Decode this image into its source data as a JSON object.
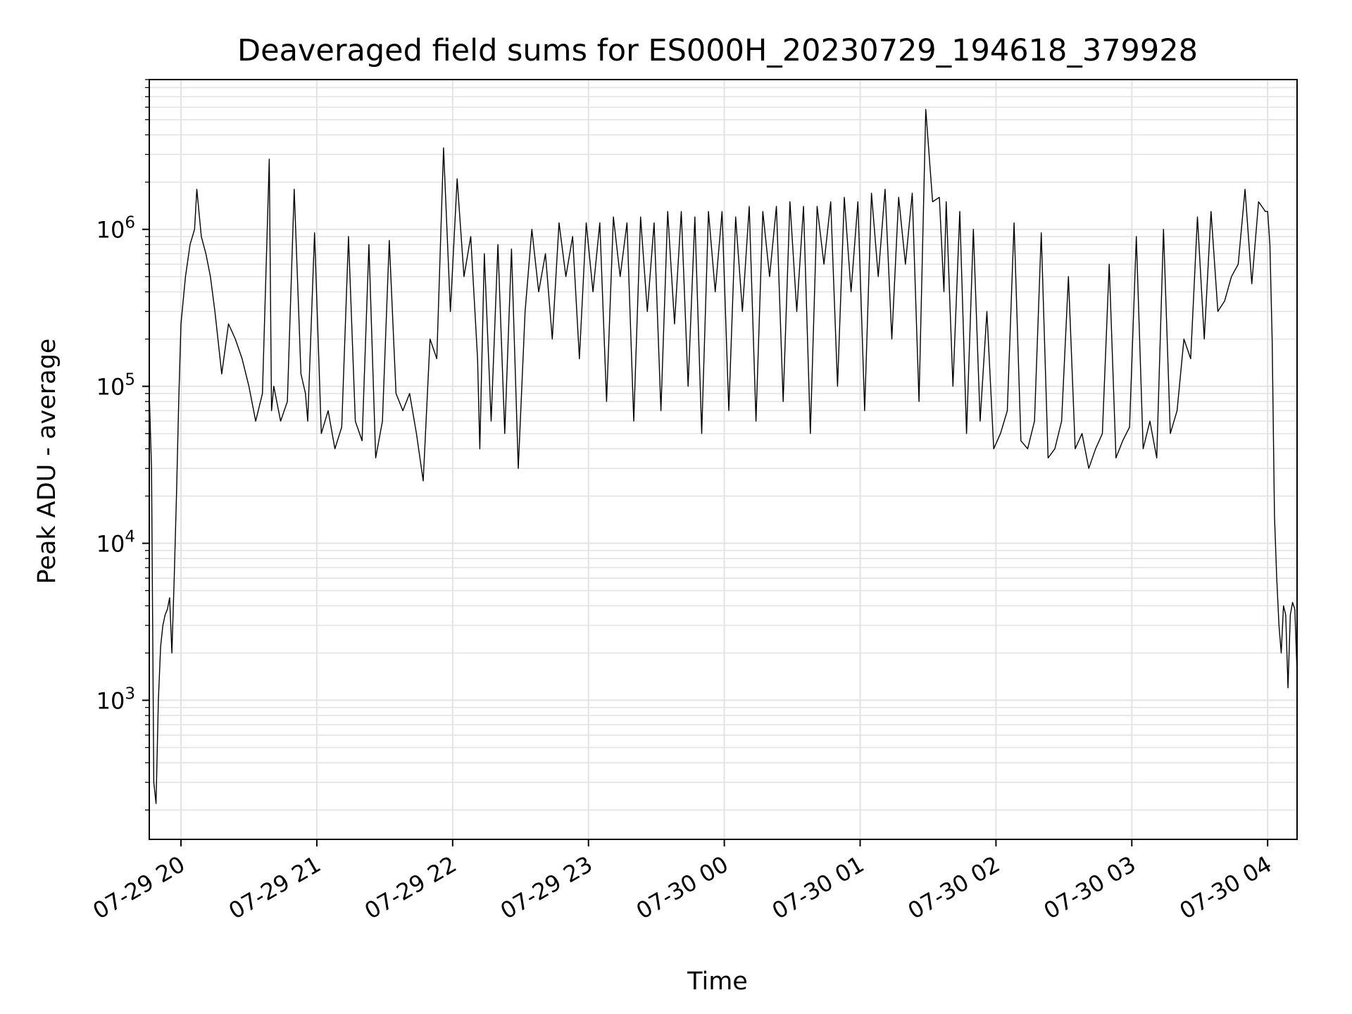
{
  "chart_data": {
    "type": "line",
    "title": "Deaveraged field sums for ES000H_20230729_194618_379928",
    "xlabel": "Time",
    "ylabel": "Peak ADU - average",
    "yscale": "log",
    "grid": true,
    "xlim": [
      "2023-07-29 19:46",
      "2023-07-30 04:13"
    ],
    "ylim": [
      130,
      9000000
    ],
    "line_color": "#000000",
    "x_ticks": [
      {
        "value": "2023-07-29 20:00",
        "label": "07-29 20"
      },
      {
        "value": "2023-07-29 21:00",
        "label": "07-29 21"
      },
      {
        "value": "2023-07-29 22:00",
        "label": "07-29 22"
      },
      {
        "value": "2023-07-29 23:00",
        "label": "07-29 23"
      },
      {
        "value": "2023-07-30 00:00",
        "label": "07-30 00"
      },
      {
        "value": "2023-07-30 01:00",
        "label": "07-30 01"
      },
      {
        "value": "2023-07-30 02:00",
        "label": "07-30 02"
      },
      {
        "value": "2023-07-30 03:00",
        "label": "07-30 03"
      },
      {
        "value": "2023-07-30 04:00",
        "label": "07-30 04"
      }
    ],
    "y_ticks": [
      {
        "value": 1000,
        "base": "10",
        "exp": "3"
      },
      {
        "value": 10000,
        "base": "10",
        "exp": "4"
      },
      {
        "value": 100000,
        "base": "10",
        "exp": "5"
      },
      {
        "value": 1000000,
        "base": "10",
        "exp": "6"
      }
    ],
    "series": [
      {
        "x": [
          "2023-07-29 19:46",
          "2023-07-29 19:47",
          "2023-07-29 19:48",
          "2023-07-29 19:49",
          "2023-07-29 19:50",
          "2023-07-29 19:51",
          "2023-07-29 19:52",
          "2023-07-29 19:53",
          "2023-07-29 19:54",
          "2023-07-29 19:55",
          "2023-07-29 19:56",
          "2023-07-29 19:57",
          "2023-07-29 19:58",
          "2023-07-29 19:59",
          "2023-07-29 20:00",
          "2023-07-29 20:02",
          "2023-07-29 20:04",
          "2023-07-29 20:06",
          "2023-07-29 20:07",
          "2023-07-29 20:09",
          "2023-07-29 20:11",
          "2023-07-29 20:13",
          "2023-07-29 20:15",
          "2023-07-29 20:18",
          "2023-07-29 20:21",
          "2023-07-29 20:24",
          "2023-07-29 20:27",
          "2023-07-29 20:30",
          "2023-07-29 20:33",
          "2023-07-29 20:36",
          "2023-07-29 20:39",
          "2023-07-29 20:40",
          "2023-07-29 20:41",
          "2023-07-29 20:44",
          "2023-07-29 20:47",
          "2023-07-29 20:50",
          "2023-07-29 20:53",
          "2023-07-29 20:55",
          "2023-07-29 20:56",
          "2023-07-29 20:59",
          "2023-07-29 21:02",
          "2023-07-29 21:05",
          "2023-07-29 21:08",
          "2023-07-29 21:11",
          "2023-07-29 21:14",
          "2023-07-29 21:17",
          "2023-07-29 21:20",
          "2023-07-29 21:23",
          "2023-07-29 21:26",
          "2023-07-29 21:29",
          "2023-07-29 21:32",
          "2023-07-29 21:35",
          "2023-07-29 21:38",
          "2023-07-29 21:41",
          "2023-07-29 21:44",
          "2023-07-29 21:47",
          "2023-07-29 21:50",
          "2023-07-29 21:53",
          "2023-07-29 21:56",
          "2023-07-29 21:59",
          "2023-07-29 22:02",
          "2023-07-29 22:05",
          "2023-07-29 22:08",
          "2023-07-29 22:11",
          "2023-07-29 22:12",
          "2023-07-29 22:14",
          "2023-07-29 22:17",
          "2023-07-29 22:20",
          "2023-07-29 22:23",
          "2023-07-29 22:26",
          "2023-07-29 22:29",
          "2023-07-29 22:32",
          "2023-07-29 22:35",
          "2023-07-29 22:38",
          "2023-07-29 22:41",
          "2023-07-29 22:44",
          "2023-07-29 22:47",
          "2023-07-29 22:50",
          "2023-07-29 22:53",
          "2023-07-29 22:56",
          "2023-07-29 22:59",
          "2023-07-29 23:02",
          "2023-07-29 23:05",
          "2023-07-29 23:08",
          "2023-07-29 23:11",
          "2023-07-29 23:14",
          "2023-07-29 23:17",
          "2023-07-29 23:20",
          "2023-07-29 23:23",
          "2023-07-29 23:26",
          "2023-07-29 23:29",
          "2023-07-29 23:32",
          "2023-07-29 23:35",
          "2023-07-29 23:38",
          "2023-07-29 23:41",
          "2023-07-29 23:44",
          "2023-07-29 23:47",
          "2023-07-29 23:50",
          "2023-07-29 23:53",
          "2023-07-29 23:56",
          "2023-07-29 23:59",
          "2023-07-30 00:02",
          "2023-07-30 00:05",
          "2023-07-30 00:08",
          "2023-07-30 00:11",
          "2023-07-30 00:14",
          "2023-07-30 00:17",
          "2023-07-30 00:20",
          "2023-07-30 00:23",
          "2023-07-30 00:26",
          "2023-07-30 00:29",
          "2023-07-30 00:32",
          "2023-07-30 00:35",
          "2023-07-30 00:38",
          "2023-07-30 00:41",
          "2023-07-30 00:44",
          "2023-07-30 00:47",
          "2023-07-30 00:50",
          "2023-07-30 00:53",
          "2023-07-30 00:56",
          "2023-07-30 00:59",
          "2023-07-30 01:02",
          "2023-07-30 01:05",
          "2023-07-30 01:08",
          "2023-07-30 01:11",
          "2023-07-30 01:14",
          "2023-07-30 01:17",
          "2023-07-30 01:20",
          "2023-07-30 01:23",
          "2023-07-30 01:26",
          "2023-07-30 01:29",
          "2023-07-30 01:32",
          "2023-07-30 01:35",
          "2023-07-30 01:37",
          "2023-07-30 01:38",
          "2023-07-30 01:41",
          "2023-07-30 01:44",
          "2023-07-30 01:47",
          "2023-07-30 01:50",
          "2023-07-30 01:53",
          "2023-07-30 01:56",
          "2023-07-30 01:59",
          "2023-07-30 02:02",
          "2023-07-30 02:05",
          "2023-07-30 02:08",
          "2023-07-30 02:11",
          "2023-07-30 02:14",
          "2023-07-30 02:17",
          "2023-07-30 02:20",
          "2023-07-30 02:23",
          "2023-07-30 02:26",
          "2023-07-30 02:29",
          "2023-07-30 02:32",
          "2023-07-30 02:35",
          "2023-07-30 02:38",
          "2023-07-30 02:41",
          "2023-07-30 02:44",
          "2023-07-30 02:47",
          "2023-07-30 02:50",
          "2023-07-30 02:53",
          "2023-07-30 02:56",
          "2023-07-30 02:59",
          "2023-07-30 03:02",
          "2023-07-30 03:05",
          "2023-07-30 03:08",
          "2023-07-30 03:11",
          "2023-07-30 03:14",
          "2023-07-30 03:17",
          "2023-07-30 03:20",
          "2023-07-30 03:23",
          "2023-07-30 03:26",
          "2023-07-30 03:29",
          "2023-07-30 03:32",
          "2023-07-30 03:35",
          "2023-07-30 03:38",
          "2023-07-30 03:41",
          "2023-07-30 03:44",
          "2023-07-30 03:47",
          "2023-07-30 03:50",
          "2023-07-30 03:53",
          "2023-07-30 03:56",
          "2023-07-30 03:59",
          "2023-07-30 04:00",
          "2023-07-30 04:01",
          "2023-07-30 04:02",
          "2023-07-30 04:03",
          "2023-07-30 04:04",
          "2023-07-30 04:05",
          "2023-07-30 04:06",
          "2023-07-30 04:07",
          "2023-07-30 04:08",
          "2023-07-30 04:09",
          "2023-07-30 04:10",
          "2023-07-30 04:11",
          "2023-07-30 04:12",
          "2023-07-30 04:13"
        ],
        "y": [
          90000,
          30000,
          300,
          220,
          1000,
          2200,
          3000,
          3500,
          3800,
          4500,
          2000,
          6000,
          20000,
          80000,
          250000,
          500000,
          800000,
          1000000,
          1800000,
          900000,
          700000,
          500000,
          300000,
          120000,
          250000,
          200000,
          150000,
          100000,
          60000,
          90000,
          2800000,
          70000,
          100000,
          60000,
          80000,
          1800000,
          120000,
          90000,
          60000,
          950000,
          50000,
          70000,
          40000,
          55000,
          900000,
          60000,
          45000,
          800000,
          35000,
          60000,
          850000,
          90000,
          70000,
          90000,
          50000,
          25000,
          200000,
          150000,
          3300000,
          300000,
          2100000,
          500000,
          900000,
          150000,
          40000,
          700000,
          60000,
          800000,
          50000,
          750000,
          30000,
          300000,
          1000000,
          400000,
          700000,
          200000,
          1100000,
          500000,
          900000,
          150000,
          1100000,
          400000,
          1100000,
          80000,
          1200000,
          500000,
          1100000,
          60000,
          1200000,
          300000,
          1100000,
          70000,
          1300000,
          250000,
          1300000,
          100000,
          1200000,
          50000,
          1300000,
          400000,
          1300000,
          70000,
          1200000,
          300000,
          1400000,
          60000,
          1300000,
          500000,
          1400000,
          80000,
          1500000,
          300000,
          1400000,
          50000,
          1400000,
          600000,
          1500000,
          100000,
          1600000,
          400000,
          1500000,
          70000,
          1700000,
          500000,
          1800000,
          200000,
          1600000,
          600000,
          1700000,
          80000,
          5800000,
          1500000,
          1600000,
          400000,
          1500000,
          100000,
          1300000,
          50000,
          1000000,
          60000,
          300000,
          40000,
          50000,
          70000,
          1100000,
          45000,
          40000,
          60000,
          950000,
          35000,
          40000,
          60000,
          500000,
          40000,
          50000,
          30000,
          40000,
          50000,
          600000,
          35000,
          45000,
          55000,
          900000,
          40000,
          60000,
          35000,
          1000000,
          50000,
          70000,
          200000,
          150000,
          1200000,
          200000,
          1300000,
          300000,
          350000,
          500000,
          600000,
          1800000,
          450000,
          1500000,
          1300000,
          1300000,
          800000,
          200000,
          15000,
          6000,
          3000,
          2000,
          4000,
          3500,
          1200,
          3500,
          4200,
          3800,
          1500
        ]
      }
    ]
  }
}
